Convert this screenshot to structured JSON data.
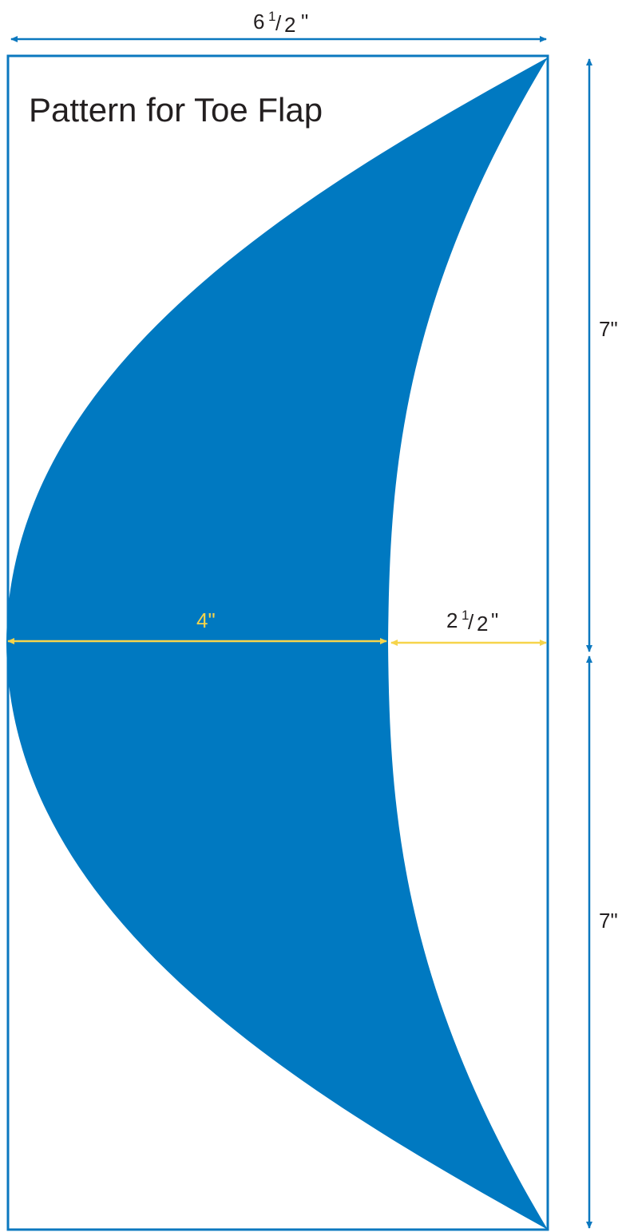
{
  "title": "Pattern for Toe Flap",
  "dimensions": {
    "top_width": {
      "whole": "6",
      "num": "1",
      "den": "2",
      "unit": "\""
    },
    "upper_height": "7\"",
    "lower_height": "7\"",
    "flap_width": "4\"",
    "gap_width": {
      "whole": "2",
      "num": "1",
      "den": "2",
      "unit": "\""
    }
  },
  "colors": {
    "shape_fill": "#0079c1",
    "outline": "#0b78bf",
    "yellow_dimension": "#f6d44b",
    "text": "#231f20"
  }
}
